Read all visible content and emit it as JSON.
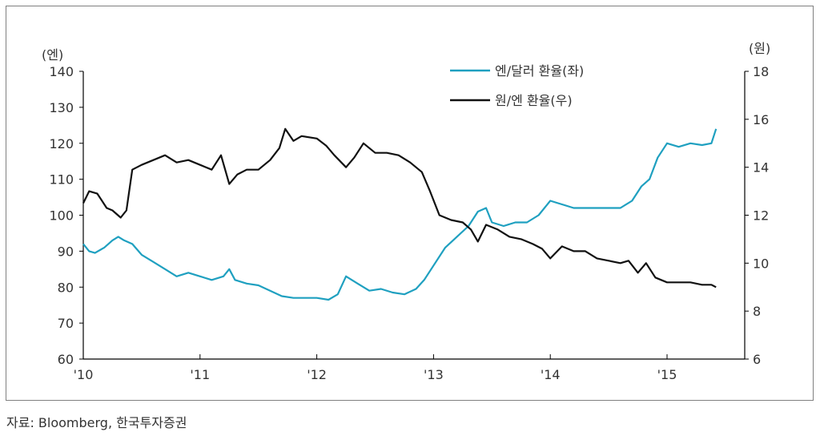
{
  "chart_data": {
    "type": "line",
    "xlabel": "",
    "x_tick_labels": [
      "'10",
      "'11",
      "'12",
      "'13",
      "'14",
      "'15"
    ],
    "xlim": [
      2010.0,
      2015.65
    ],
    "left_axis": {
      "unit_label": "(엔)",
      "ylim": [
        60,
        140
      ],
      "ticks": [
        60,
        70,
        80,
        90,
        100,
        110,
        120,
        130,
        140
      ]
    },
    "right_axis": {
      "unit_label": "(원)",
      "ylim": [
        6,
        18
      ],
      "ticks": [
        6,
        8,
        10,
        12,
        14,
        16,
        18
      ]
    },
    "grid": false,
    "legend_position": "top-right",
    "series": [
      {
        "name": "엔/달러 환율(좌)",
        "axis": "left",
        "color": "#1fa0c0",
        "x": [
          2010.0,
          2010.05,
          2010.1,
          2010.18,
          2010.25,
          2010.3,
          2010.35,
          2010.42,
          2010.5,
          2010.6,
          2010.7,
          2010.8,
          2010.9,
          2011.0,
          2011.1,
          2011.2,
          2011.25,
          2011.3,
          2011.4,
          2011.5,
          2011.6,
          2011.7,
          2011.8,
          2011.9,
          2012.0,
          2012.1,
          2012.18,
          2012.25,
          2012.35,
          2012.45,
          2012.55,
          2012.65,
          2012.75,
          2012.85,
          2012.92,
          2013.0,
          2013.1,
          2013.2,
          2013.3,
          2013.38,
          2013.45,
          2013.5,
          2013.6,
          2013.7,
          2013.8,
          2013.9,
          2014.0,
          2014.1,
          2014.2,
          2014.35,
          2014.5,
          2014.6,
          2014.7,
          2014.78,
          2014.85,
          2014.92,
          2015.0,
          2015.1,
          2015.2,
          2015.3,
          2015.38,
          2015.42
        ],
        "y": [
          92,
          90,
          89.5,
          91,
          93,
          94,
          93,
          92,
          89,
          87,
          85,
          83,
          84,
          83,
          82,
          83,
          85,
          82,
          81,
          80.5,
          79,
          77.5,
          77,
          77,
          77,
          76.5,
          78,
          83,
          81,
          79,
          79.5,
          78.5,
          78,
          79.5,
          82,
          86,
          91,
          94,
          97,
          101,
          102,
          98,
          97,
          98,
          98,
          100,
          104,
          103,
          102,
          102,
          102,
          102,
          104,
          108,
          110,
          116,
          120,
          119,
          120,
          119.5,
          120,
          124
        ]
      },
      {
        "name": "원/엔 환율(우)",
        "axis": "right",
        "color": "#111111",
        "x": [
          2010.0,
          2010.05,
          2010.12,
          2010.2,
          2010.25,
          2010.32,
          2010.37,
          2010.42,
          2010.5,
          2010.6,
          2010.7,
          2010.8,
          2010.9,
          2011.0,
          2011.1,
          2011.18,
          2011.25,
          2011.32,
          2011.4,
          2011.5,
          2011.6,
          2011.68,
          2011.73,
          2011.8,
          2011.87,
          2012.0,
          2012.08,
          2012.15,
          2012.25,
          2012.32,
          2012.4,
          2012.5,
          2012.6,
          2012.7,
          2012.8,
          2012.9,
          2012.97,
          2013.05,
          2013.15,
          2013.25,
          2013.32,
          2013.38,
          2013.45,
          2013.55,
          2013.65,
          2013.75,
          2013.85,
          2013.93,
          2014.0,
          2014.1,
          2014.2,
          2014.3,
          2014.4,
          2014.5,
          2014.6,
          2014.67,
          2014.75,
          2014.82,
          2014.9,
          2015.0,
          2015.1,
          2015.2,
          2015.3,
          2015.38,
          2015.42
        ],
        "y": [
          12.5,
          13.0,
          12.9,
          12.3,
          12.2,
          11.9,
          12.2,
          13.9,
          14.1,
          14.3,
          14.5,
          14.2,
          14.3,
          14.1,
          13.9,
          14.5,
          13.3,
          13.7,
          13.9,
          13.9,
          14.3,
          14.8,
          15.6,
          15.1,
          15.3,
          15.2,
          14.9,
          14.5,
          14.0,
          14.4,
          15.0,
          14.6,
          14.6,
          14.5,
          14.2,
          13.8,
          13.0,
          12.0,
          11.8,
          11.7,
          11.4,
          10.9,
          11.6,
          11.4,
          11.1,
          11.0,
          10.8,
          10.6,
          10.2,
          10.7,
          10.5,
          10.5,
          10.2,
          10.1,
          10.0,
          10.1,
          9.6,
          10.0,
          9.4,
          9.2,
          9.2,
          9.2,
          9.1,
          9.1,
          9.0
        ]
      }
    ]
  },
  "source": "자료: Bloomberg, 한국투자증권"
}
